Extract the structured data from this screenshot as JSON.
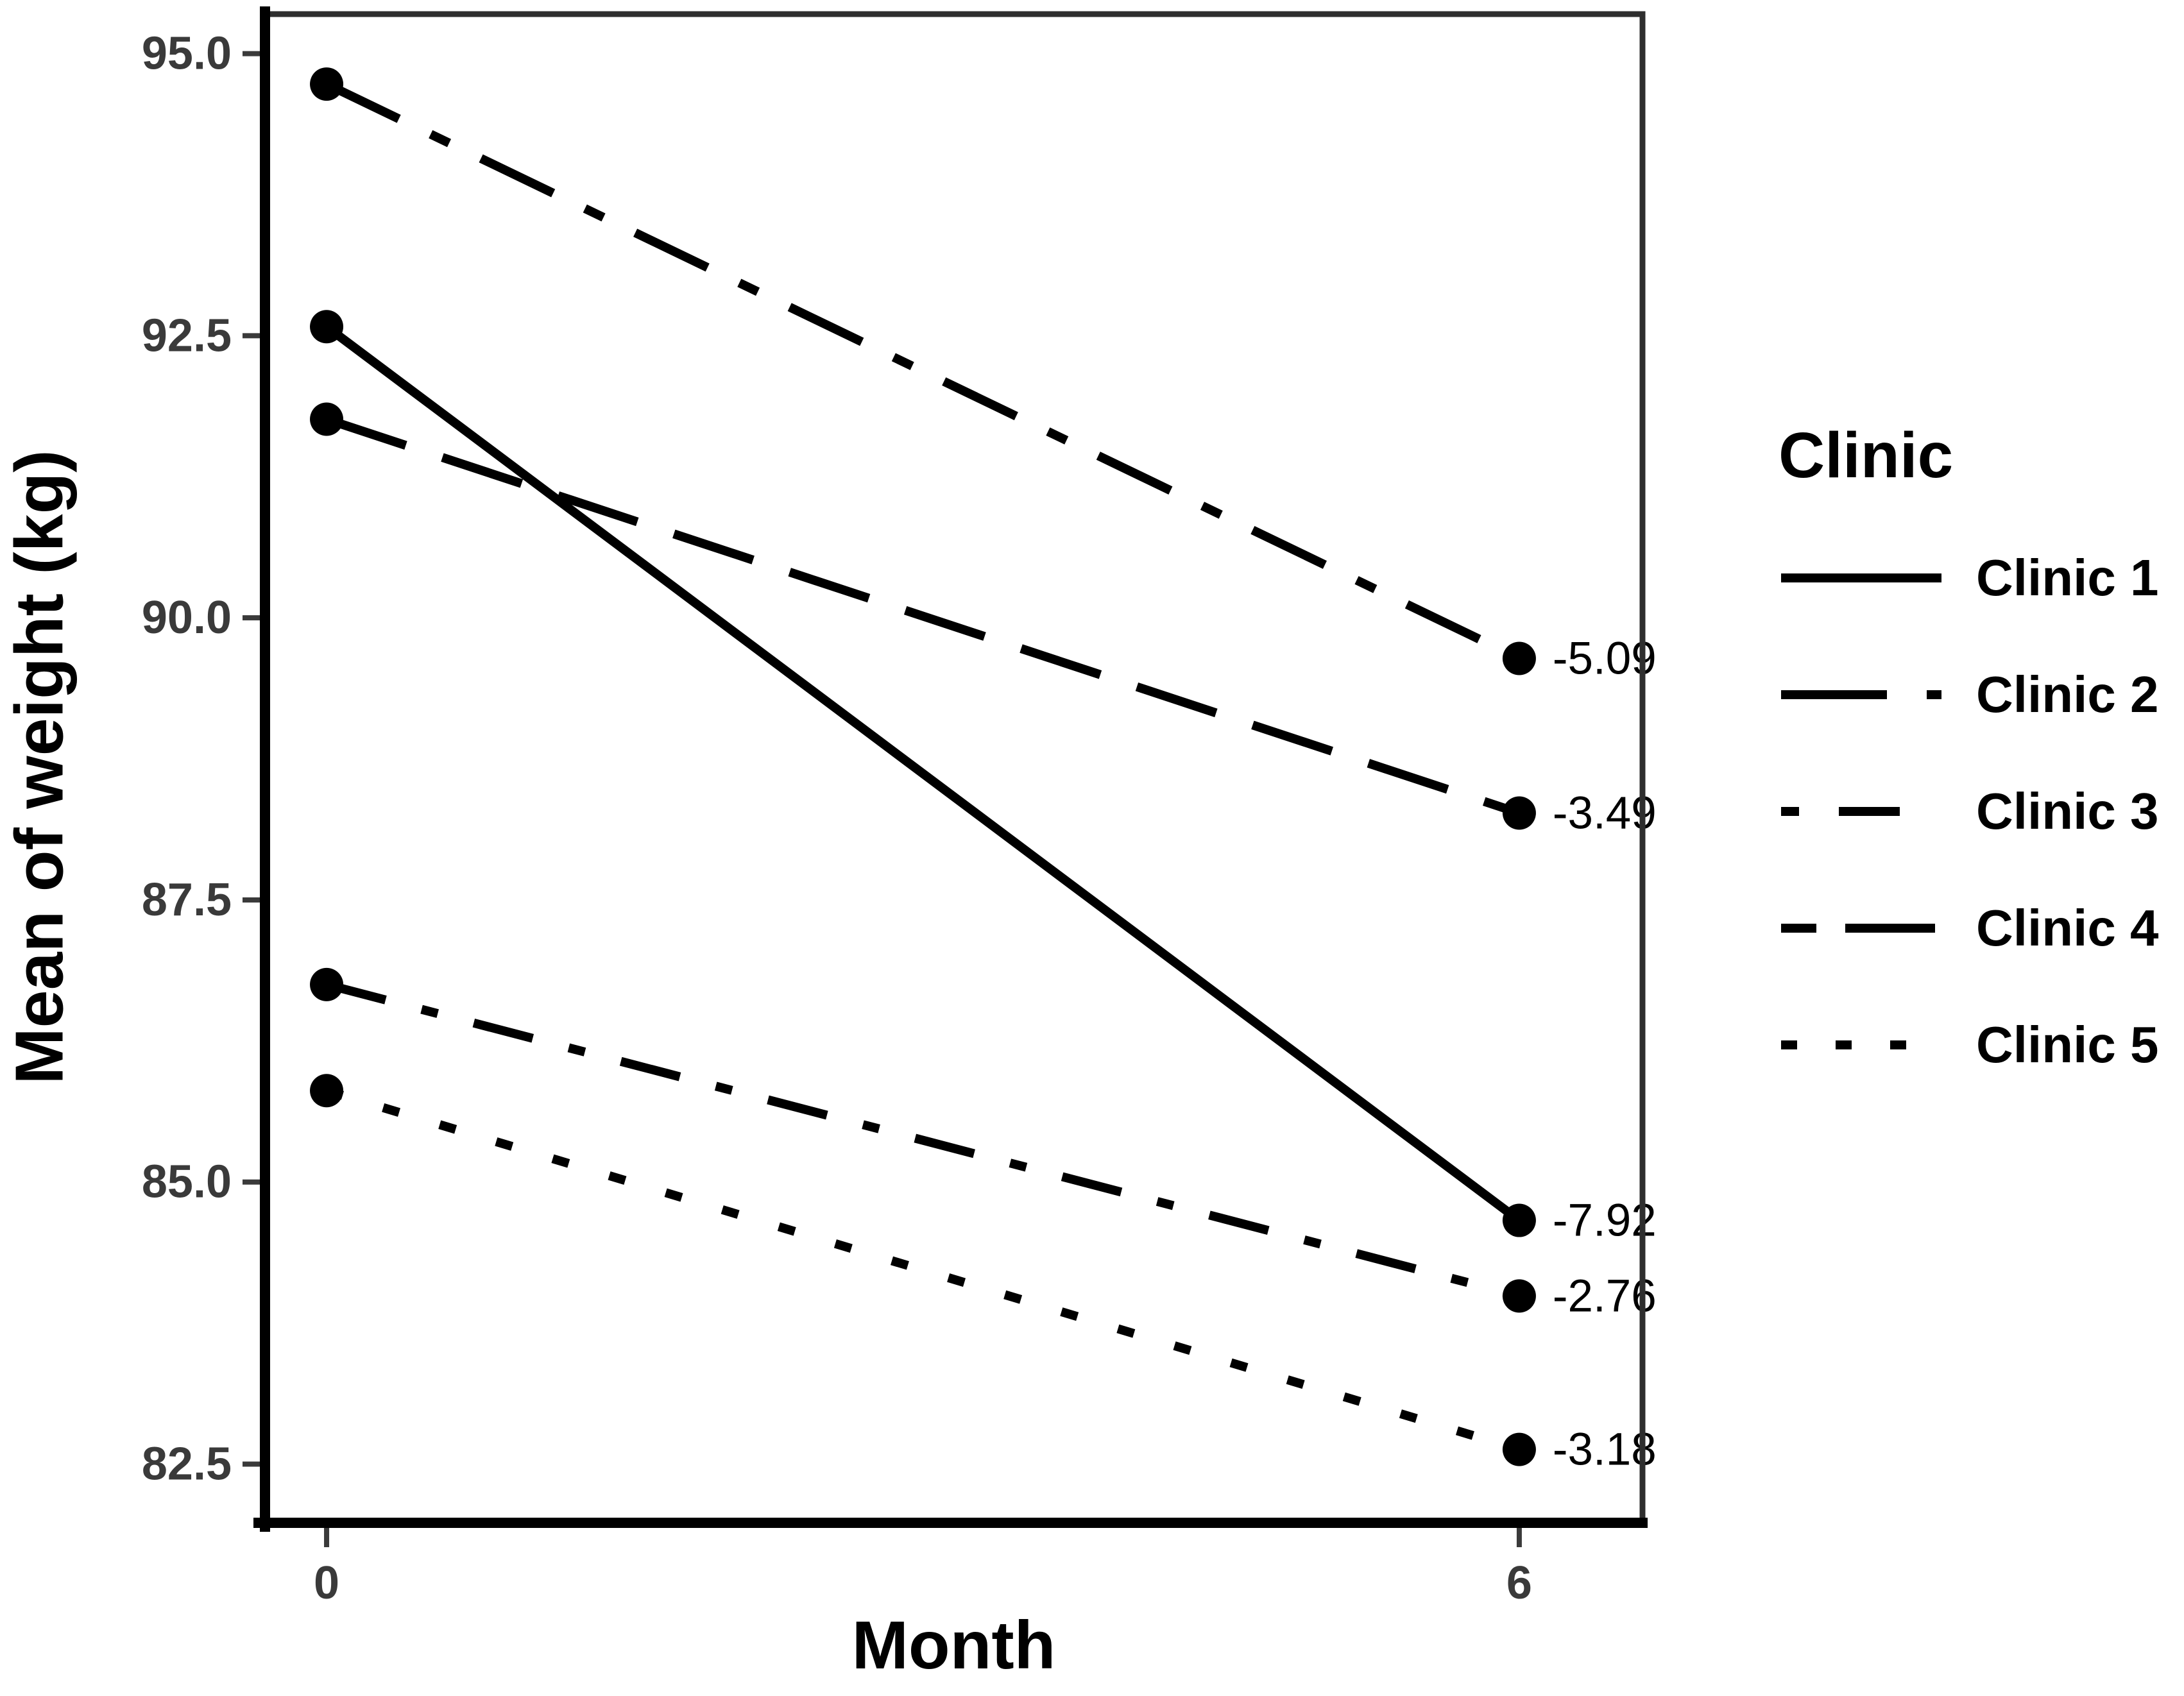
{
  "chart_data": {
    "type": "line",
    "title": "",
    "xlabel": "Month",
    "ylabel": "Mean of weight (kg)",
    "legend_title": "Clinic",
    "legend_position": "right",
    "grid": "off",
    "background": "#ffffff",
    "line_color": "#000000",
    "tick_label_color": "#3a3a3a",
    "axis_line_color": "#000000",
    "panel_border_color": "#2e2e2e",
    "x": [
      0,
      6
    ],
    "xlim": [
      -0.31,
      6.62
    ],
    "ylim": [
      81.98,
      95.35
    ],
    "xticks": [
      {
        "value": 0,
        "label": "0"
      },
      {
        "value": 6,
        "label": "6"
      }
    ],
    "yticks": [
      {
        "value": 95.0,
        "label": "95.0"
      },
      {
        "value": 92.5,
        "label": "92.5"
      },
      {
        "value": 90.0,
        "label": "90.0"
      },
      {
        "value": 87.5,
        "label": "87.5"
      },
      {
        "value": 85.0,
        "label": "85.0"
      },
      {
        "value": 82.5,
        "label": "82.5"
      }
    ],
    "series": [
      {
        "name": "Clinic 1",
        "linetype": "solid",
        "x": [
          0,
          6
        ],
        "values": [
          92.58,
          84.66
        ],
        "change_label": "-7.92"
      },
      {
        "name": "Clinic 2",
        "linetype": "longdash-dot",
        "x": [
          0,
          6
        ],
        "values": [
          94.73,
          89.64
        ],
        "change_label": "-5.09"
      },
      {
        "name": "Clinic 3",
        "linetype": "dash-dot",
        "x": [
          0,
          6
        ],
        "values": [
          86.75,
          83.99
        ],
        "change_label": "-2.76"
      },
      {
        "name": "Clinic 4",
        "linetype": "longdash",
        "x": [
          0,
          6
        ],
        "values": [
          91.76,
          88.27
        ],
        "change_label": "-3.49"
      },
      {
        "name": "Clinic 5",
        "linetype": "dotted",
        "x": [
          0,
          6
        ],
        "values": [
          85.81,
          82.63
        ],
        "change_label": "-3.18"
      }
    ]
  }
}
